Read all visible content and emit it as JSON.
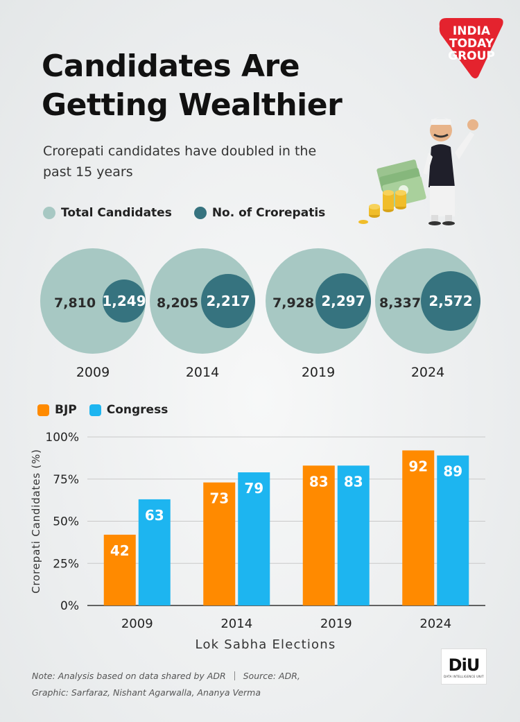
{
  "title_lines": [
    "Candidates Are",
    "Getting Wealthier"
  ],
  "subtitle": "Crorepati candidates have doubled in the past 15 years",
  "logo_text": [
    "INDIA",
    "TODAY",
    "GROUP"
  ],
  "colors": {
    "total": "#a7c8c3",
    "crorepati": "#36737f",
    "bjp": "#ff8a00",
    "congress": "#1db5f0",
    "axis": "#333333",
    "grid": "#c9c9c9"
  },
  "legend_top": [
    {
      "label": "Total Candidates",
      "color": "#a7c8c3"
    },
    {
      "label": "No. of Crorepatis",
      "color": "#36737f"
    }
  ],
  "bubbles": [
    {
      "year": "2009",
      "total": "7,810",
      "crorepatis": "1,249"
    },
    {
      "year": "2014",
      "total": "8,205",
      "crorepatis": "2,217"
    },
    {
      "year": "2019",
      "total": "7,928",
      "crorepatis": "2,297"
    },
    {
      "year": "2024",
      "total": "8,337",
      "crorepatis": "2,572"
    }
  ],
  "legend_bottom": [
    {
      "label": "BJP",
      "color": "#ff8a00"
    },
    {
      "label": "Congress",
      "color": "#1db5f0"
    }
  ],
  "chart_data": {
    "type": "bar",
    "categories": [
      "2009",
      "2014",
      "2019",
      "2024"
    ],
    "series": [
      {
        "name": "BJP",
        "values": [
          42,
          73,
          83,
          92
        ]
      },
      {
        "name": "Congress",
        "values": [
          63,
          79,
          83,
          89
        ]
      }
    ],
    "ylabel": "Crorepati Candidates (%)",
    "xlabel": "Lok Sabha Elections",
    "ylim": [
      0,
      100
    ],
    "yticks": [
      0,
      25,
      50,
      75,
      100
    ],
    "ytick_labels": [
      "0%",
      "25%",
      "50%",
      "75%",
      "100%"
    ],
    "grid": true,
    "legend": "top-left"
  },
  "note": {
    "note_label": "Note:",
    "note_text": "Analysis based on data shared by ADR",
    "source_label": "Source:",
    "source_text": "ADR,",
    "graphic": "Graphic: Sarfaraz, Nishant Agarwalla, Ananya Verma"
  },
  "diu_logo": {
    "mark": "DiU",
    "sub": "DATA INTELLIGENCE UNIT"
  }
}
